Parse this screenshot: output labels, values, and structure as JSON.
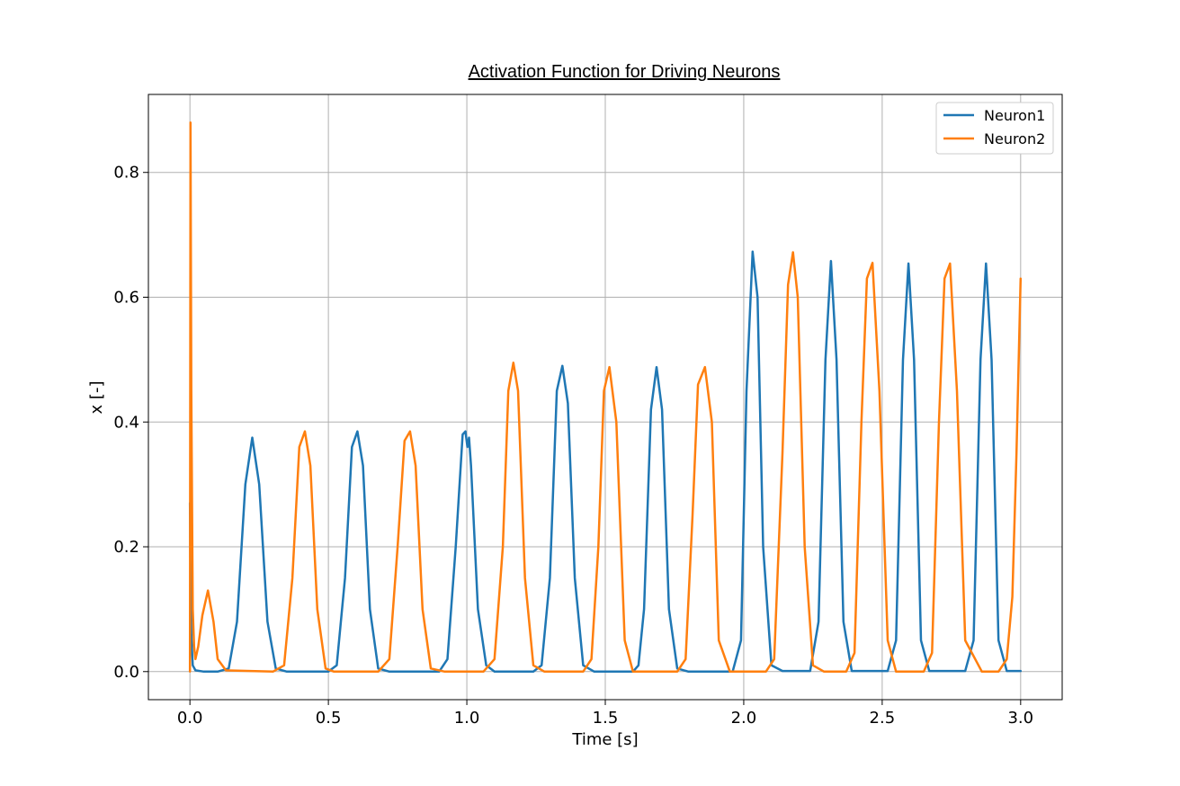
{
  "chart_data": {
    "type": "line",
    "title": "Activation Function for Driving Neurons",
    "xlabel": "Time [s]",
    "ylabel": "x [-]",
    "xlim": [
      -0.15,
      3.15
    ],
    "ylim": [
      -0.045,
      0.925
    ],
    "xticks": [
      0.0,
      0.5,
      1.0,
      1.5,
      2.0,
      2.5,
      3.0
    ],
    "xtick_labels": [
      "0.0",
      "0.5",
      "1.0",
      "1.5",
      "2.0",
      "2.5",
      "3.0"
    ],
    "yticks": [
      0.0,
      0.2,
      0.4,
      0.6,
      0.8
    ],
    "ytick_labels": [
      "0.0",
      "0.2",
      "0.4",
      "0.6",
      "0.8"
    ],
    "grid": true,
    "legend_position": "top-right",
    "series": [
      {
        "name": "Neuron1",
        "color": "#1f77b4",
        "x": [
          0.0,
          0.001,
          0.005,
          0.01,
          0.02,
          0.05,
          0.1,
          0.14,
          0.17,
          0.2,
          0.225,
          0.25,
          0.28,
          0.31,
          0.35,
          0.5,
          0.53,
          0.56,
          0.585,
          0.605,
          0.625,
          0.65,
          0.68,
          0.72,
          0.9,
          0.93,
          0.96,
          0.985,
          0.995,
          1.002,
          1.008,
          1.015,
          1.04,
          1.07,
          1.1,
          1.24,
          1.27,
          1.3,
          1.325,
          1.345,
          1.365,
          1.39,
          1.42,
          1.46,
          1.6,
          1.62,
          1.64,
          1.665,
          1.685,
          1.705,
          1.73,
          1.76,
          1.8,
          1.96,
          1.99,
          2.01,
          2.032,
          2.05,
          2.07,
          2.1,
          2.14,
          2.24,
          2.27,
          2.295,
          2.315,
          2.335,
          2.36,
          2.39,
          2.42,
          2.52,
          2.55,
          2.575,
          2.595,
          2.615,
          2.64,
          2.67,
          2.7,
          2.8,
          2.83,
          2.855,
          2.875,
          2.895,
          2.92,
          2.95,
          3.0
        ],
        "y": [
          0.27,
          0.2,
          0.06,
          0.01,
          0.002,
          0.0,
          0.0,
          0.005,
          0.08,
          0.3,
          0.375,
          0.3,
          0.08,
          0.005,
          0.0,
          0.0,
          0.01,
          0.15,
          0.36,
          0.385,
          0.33,
          0.1,
          0.005,
          0.0,
          0.0,
          0.02,
          0.2,
          0.38,
          0.385,
          0.36,
          0.375,
          0.33,
          0.1,
          0.01,
          0.0,
          0.0,
          0.01,
          0.15,
          0.45,
          0.49,
          0.43,
          0.15,
          0.01,
          0.0,
          0.0,
          0.01,
          0.1,
          0.42,
          0.488,
          0.42,
          0.1,
          0.005,
          0.0,
          0.0,
          0.05,
          0.45,
          0.673,
          0.6,
          0.2,
          0.01,
          0.001,
          0.001,
          0.08,
          0.5,
          0.658,
          0.5,
          0.08,
          0.001,
          0.001,
          0.001,
          0.05,
          0.5,
          0.654,
          0.5,
          0.05,
          0.001,
          0.001,
          0.001,
          0.05,
          0.5,
          0.654,
          0.5,
          0.05,
          0.001,
          0.001
        ]
      },
      {
        "name": "Neuron2",
        "color": "#ff7f0e",
        "x": [
          0.0,
          0.002,
          0.005,
          0.01,
          0.015,
          0.02,
          0.03,
          0.045,
          0.065,
          0.085,
          0.1,
          0.13,
          0.3,
          0.34,
          0.37,
          0.395,
          0.415,
          0.435,
          0.46,
          0.49,
          0.52,
          0.68,
          0.72,
          0.75,
          0.775,
          0.795,
          0.815,
          0.84,
          0.87,
          0.92,
          1.06,
          1.1,
          1.13,
          1.15,
          1.168,
          1.185,
          1.21,
          1.24,
          1.28,
          1.42,
          1.45,
          1.475,
          1.495,
          1.515,
          1.54,
          1.57,
          1.6,
          1.76,
          1.79,
          1.815,
          1.835,
          1.86,
          1.885,
          1.91,
          1.95,
          2.08,
          2.11,
          2.14,
          2.16,
          2.178,
          2.195,
          2.22,
          2.25,
          2.29,
          2.37,
          2.4,
          2.425,
          2.445,
          2.465,
          2.49,
          2.52,
          2.55,
          2.65,
          2.68,
          2.705,
          2.725,
          2.745,
          2.77,
          2.8,
          2.86,
          2.92,
          2.95,
          2.97,
          2.985,
          3.0
        ],
        "y": [
          0.0,
          0.88,
          0.45,
          0.1,
          0.04,
          0.02,
          0.04,
          0.09,
          0.13,
          0.08,
          0.02,
          0.002,
          0.0,
          0.01,
          0.15,
          0.36,
          0.385,
          0.33,
          0.1,
          0.005,
          0.0,
          0.0,
          0.02,
          0.2,
          0.37,
          0.385,
          0.33,
          0.1,
          0.005,
          0.0,
          0.0,
          0.02,
          0.2,
          0.45,
          0.495,
          0.45,
          0.15,
          0.01,
          0.0,
          0.0,
          0.02,
          0.2,
          0.45,
          0.488,
          0.4,
          0.05,
          0.0,
          0.0,
          0.02,
          0.25,
          0.46,
          0.488,
          0.4,
          0.05,
          0.0,
          0.0,
          0.02,
          0.35,
          0.62,
          0.672,
          0.6,
          0.2,
          0.01,
          0.0,
          0.0,
          0.03,
          0.4,
          0.63,
          0.655,
          0.45,
          0.05,
          0.0,
          0.0,
          0.03,
          0.4,
          0.63,
          0.654,
          0.45,
          0.05,
          0.0,
          0.0,
          0.02,
          0.12,
          0.35,
          0.63
        ]
      }
    ]
  }
}
